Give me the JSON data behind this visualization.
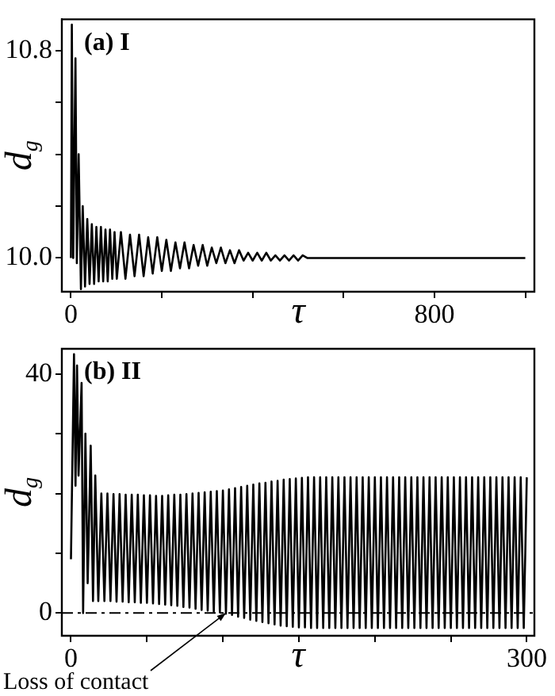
{
  "chart_data": [
    {
      "type": "line",
      "title": "(a) I",
      "xlabel": "τ",
      "ylabel": "d$_{g}$",
      "xlim": [
        -20,
        1020
      ],
      "ylim": [
        9.87,
        10.92
      ],
      "xticks": [
        0,
        {
          "value": 200,
          "label": null
        },
        {
          "value": 400,
          "label": null
        },
        {
          "value": 600,
          "label": null
        },
        800,
        {
          "value": 1000,
          "label": null
        }
      ],
      "yticks": [
        {
          "value": 10.0,
          "label": "10.0"
        },
        {
          "value": 10.2,
          "label": null
        },
        {
          "value": 10.4,
          "label": null
        },
        {
          "value": 10.6,
          "label": null
        },
        {
          "value": 10.8,
          "label": "10.8"
        }
      ],
      "grid": false,
      "legend": false,
      "series": [
        {
          "color": "#000000",
          "x": [
            0,
            2,
            5,
            10,
            13,
            17,
            22,
            26,
            31,
            36,
            41,
            46,
            51,
            56,
            61,
            66,
            71,
            76,
            81,
            86,
            91,
            96,
            101,
            110,
            120,
            130,
            140,
            150,
            160,
            170,
            180,
            190,
            200,
            210,
            220,
            230,
            240,
            250,
            260,
            270,
            280,
            290,
            300,
            310,
            320,
            330,
            340,
            350,
            360,
            370,
            380,
            390,
            400,
            410,
            420,
            430,
            440,
            450,
            460,
            470,
            480,
            490,
            500,
            510,
            520,
            600,
            1000
          ],
          "values": [
            10.0,
            10.9,
            10.0,
            10.77,
            9.98,
            10.4,
            9.88,
            10.2,
            9.89,
            10.15,
            9.9,
            10.13,
            9.9,
            10.12,
            9.91,
            10.12,
            9.91,
            10.11,
            9.91,
            10.11,
            9.92,
            10.1,
            9.92,
            10.1,
            9.92,
            10.09,
            9.93,
            10.09,
            9.93,
            10.08,
            9.94,
            10.08,
            9.95,
            10.07,
            9.95,
            10.06,
            9.96,
            10.06,
            9.96,
            10.05,
            9.97,
            10.05,
            9.97,
            10.04,
            9.98,
            10.04,
            9.98,
            10.03,
            9.98,
            10.03,
            9.99,
            10.02,
            9.99,
            10.02,
            9.99,
            10.02,
            9.99,
            10.01,
            9.99,
            10.01,
            9.99,
            10.01,
            9.99,
            10.01,
            10.0,
            10.0,
            10.0
          ]
        }
      ]
    },
    {
      "type": "line",
      "title": "(b) II",
      "xlabel": "τ",
      "ylabel": "d$_{g}$",
      "xlim": [
        -6,
        305
      ],
      "ylim": [
        -3.8,
        44.2
      ],
      "xticks": [
        0,
        {
          "value": 50,
          "label": null
        },
        {
          "value": 100,
          "label": null
        },
        {
          "value": 150,
          "label": null
        },
        {
          "value": 200,
          "label": null
        },
        {
          "value": 250,
          "label": null
        },
        300
      ],
      "yticks": [
        0,
        {
          "value": 10,
          "label": null
        },
        {
          "value": 20,
          "label": null
        },
        {
          "value": 30,
          "label": null
        },
        40
      ],
      "grid": false,
      "legend": false,
      "ref_lines": [
        {
          "axis": "y",
          "value": 0,
          "color": "#000000",
          "line_style": "dashed"
        }
      ],
      "annotations": [
        {
          "text": "Loss of contact",
          "x": 102,
          "y": 0
        }
      ],
      "series": [
        {
          "color": "#000000",
          "x": [
            0,
            2,
            3,
            4,
            5,
            7,
            8,
            9.5,
            11,
            13,
            14.5,
            16,
            18,
            20,
            22,
            24,
            26,
            28,
            30,
            32,
            34,
            36,
            38,
            40,
            42,
            44,
            46,
            48,
            50,
            52,
            54,
            56,
            58,
            60,
            62,
            64,
            66,
            68,
            70,
            72,
            74,
            76,
            78,
            80,
            82,
            84,
            86,
            88,
            90,
            92,
            94,
            96,
            98,
            100,
            102,
            104,
            106,
            108,
            110,
            112,
            114,
            116,
            118,
            120,
            122,
            124,
            126,
            128,
            130,
            132,
            134,
            136,
            138,
            140,
            142,
            144,
            146,
            148,
            150,
            152,
            154,
            156,
            158,
            160,
            162,
            164,
            166,
            168,
            170,
            172,
            174,
            176,
            178,
            180,
            182,
            184,
            186,
            188,
            190,
            192,
            194,
            196,
            198,
            200,
            202,
            204,
            206,
            208,
            210,
            212,
            214,
            216,
            218,
            220,
            222,
            224,
            226,
            228,
            230,
            232,
            234,
            236,
            238,
            240,
            242,
            244,
            246,
            248,
            250,
            252,
            254,
            256,
            258,
            260,
            262,
            264,
            266,
            268,
            270,
            272,
            274,
            276,
            278,
            280,
            282,
            284,
            286,
            288,
            290,
            292,
            294,
            296,
            298,
            300
          ],
          "values": [
            9,
            43.3,
            21.3,
            41.4,
            23,
            38.5,
            0,
            30,
            5,
            28,
            2,
            23,
            2,
            20,
            2.0,
            20,
            2.0,
            19.9,
            1.9,
            19.9,
            1.9,
            19.8,
            1.8,
            19.8,
            1.8,
            19.8,
            1.7,
            19.7,
            1.7,
            19.7,
            1.6,
            19.6,
            1.5,
            19.6,
            1.4,
            19.7,
            1.3,
            19.8,
            1.2,
            19.8,
            1.0,
            19.9,
            0.9,
            20,
            0.7,
            20.1,
            0.5,
            20.2,
            0.4,
            20.3,
            0.2,
            20.4,
            0.1,
            20.5,
            -0.1,
            20.7,
            -0.3,
            20.9,
            -0.6,
            21.1,
            -0.8,
            21.3,
            -1.1,
            21.5,
            -1.3,
            21.7,
            -1.5,
            21.8,
            -1.7,
            22.0,
            -1.9,
            22.1,
            -2.1,
            22.3,
            -2.2,
            22.4,
            -2.3,
            22.5,
            -2.4,
            22.6,
            -2.4,
            22.7,
            -2.5,
            22.7,
            -2.5,
            22.7,
            -2.5,
            22.7,
            -2.5,
            22.7,
            -2.5,
            22.7,
            -2.5,
            22.7,
            -2.5,
            22.7,
            -2.5,
            22.7,
            -2.5,
            22.7,
            -2.5,
            22.7,
            -2.5,
            22.7,
            -2.5,
            22.7,
            -2.5,
            22.7,
            -2.5,
            22.7,
            -2.5,
            22.7,
            -2.5,
            22.7,
            -2.5,
            22.7,
            -2.5,
            22.7,
            -2.5,
            22.7,
            -2.5,
            22.7,
            -2.5,
            22.7,
            -2.5,
            22.7,
            -2.5,
            22.7,
            -2.5,
            22.7,
            -2.5,
            22.7,
            -2.5,
            22.7,
            -2.5,
            22.7,
            -2.5,
            22.7,
            -2.5,
            22.7,
            -2.5,
            22.7,
            -2.5,
            22.7,
            -2.5,
            22.7,
            -2.5,
            22.7,
            -2.5,
            22.7,
            -2.5,
            22.7,
            -2.5,
            22.7
          ]
        }
      ]
    }
  ]
}
